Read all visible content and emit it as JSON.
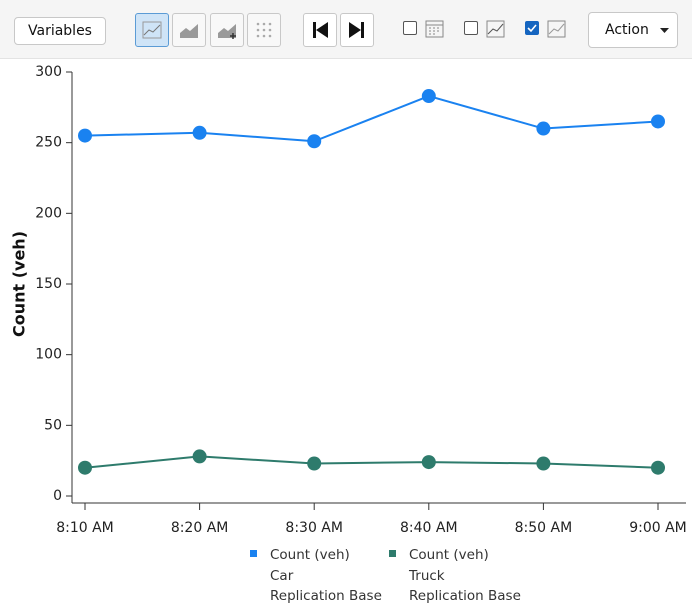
{
  "toolbar": {
    "variables": "Variables",
    "action": "Action"
  },
  "chart_data": {
    "type": "line",
    "y_label": "Count (veh)",
    "categories": [
      "8:10 AM",
      "8:20 AM",
      "8:30 AM",
      "8:40 AM",
      "8:50 AM",
      "9:00 AM"
    ],
    "series": [
      {
        "name": "Count (veh)\nCar\nReplication Base",
        "color": "#1a82f0",
        "values": [
          255,
          257,
          251,
          283,
          260,
          265
        ]
      },
      {
        "name": "Count (veh)\nTruck\nReplication Base",
        "color": "#2e7b6c",
        "values": [
          20,
          28,
          23,
          24,
          23,
          20
        ]
      }
    ],
    "ylim": [
      0,
      300
    ],
    "yticks": [
      0,
      50,
      100,
      150,
      200,
      250,
      300
    ],
    "grid": false
  }
}
